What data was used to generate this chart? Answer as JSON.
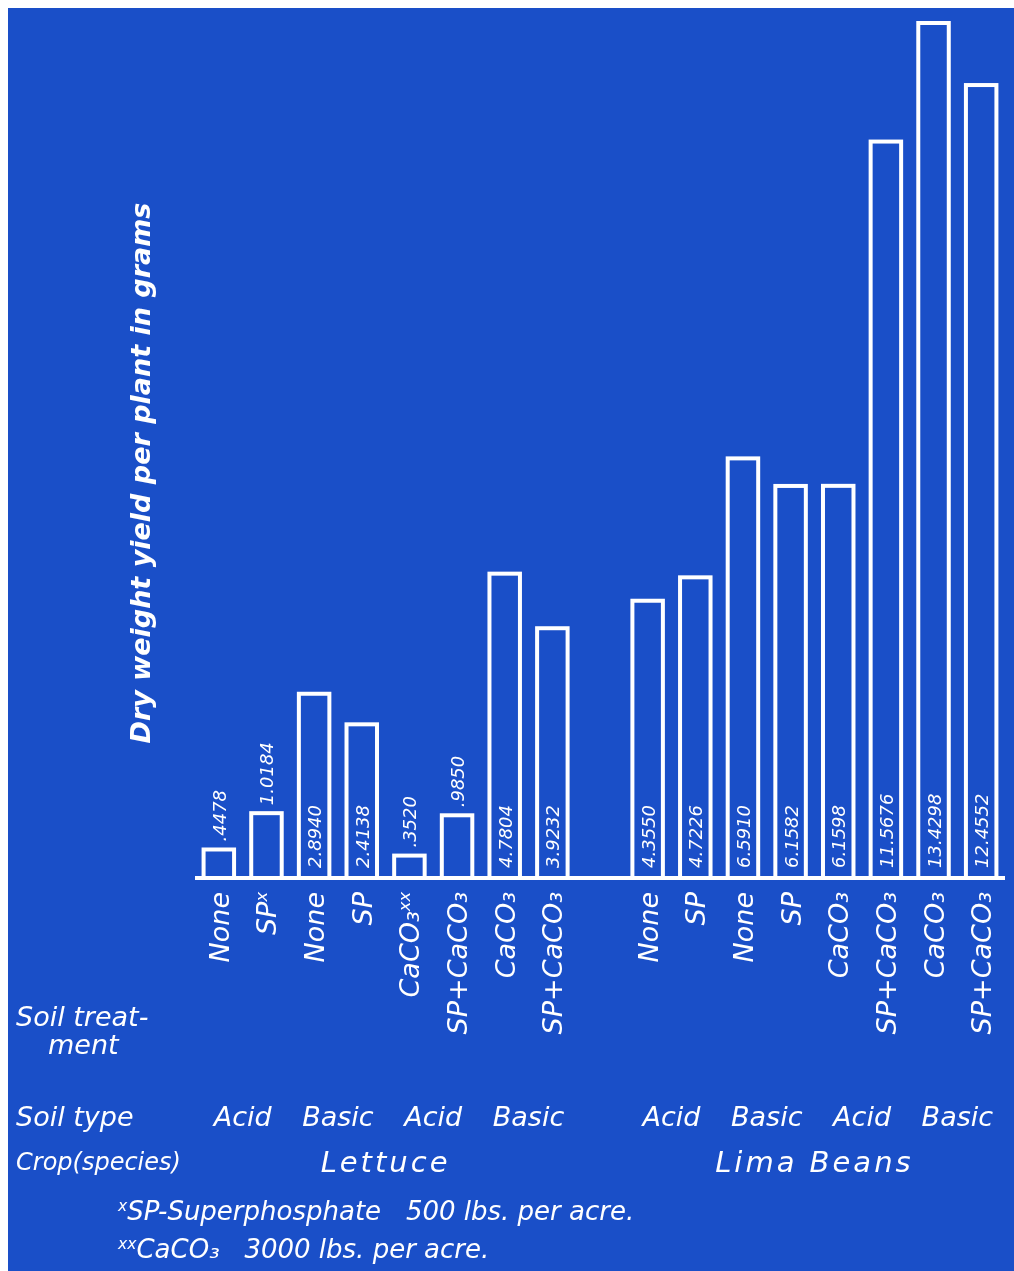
{
  "chart_data": {
    "type": "bar",
    "ylabel": "Dry weight yield per plant in grams",
    "categories": [
      "None",
      "SP$^{x}$",
      "None",
      "SP",
      "CaCO₃$^{xx}$",
      "SP+CaCO₃",
      "CaCO₃",
      "SP+CaCO₃",
      null,
      "None",
      "SP",
      "None",
      "SP",
      "CaCO₃",
      "SP+CaCO₃",
      "CaCO₃",
      "SP+CaCO₃"
    ],
    "values": [
      0.4478,
      1.0184,
      2.894,
      2.4138,
      0.352,
      0.985,
      4.7804,
      3.9232,
      null,
      4.355,
      4.7226,
      6.591,
      6.1582,
      6.1598,
      11.5676,
      13.4298,
      12.4552
    ],
    "value_labels": [
      ".4478",
      "1.0184",
      "2.8940",
      "2.4138",
      ".3520",
      ".9850",
      "4.7804",
      "3.9232",
      null,
      "4.3550",
      "4.7226",
      "6.5910",
      "6.1582",
      "6.1598",
      "11.5676",
      "13.4298",
      "12.4552"
    ],
    "color": "#ffffff",
    "annotations": [
      "Soil treat-\nment",
      "Soil type",
      "Crop(species)",
      "Acid",
      "Basic",
      "Acid",
      "Basic",
      "Acid",
      "Basic",
      "Acid",
      "Basic",
      "Lettuce",
      "Lima Beans",
      "$^{x}$SP-Superphosphate   500 lbs. per acre.",
      "$^{xx}$CaCO₃   3000 lbs. per acre."
    ]
  }
}
